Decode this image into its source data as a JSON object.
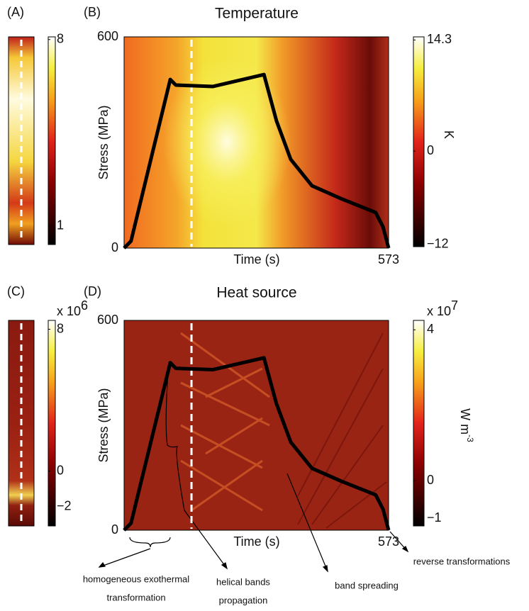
{
  "chart_data": [
    {
      "type": "line",
      "title": "Temperature",
      "panel_labels": [
        "(A)",
        "(B)"
      ],
      "ylabel": "Stress (MPa)",
      "xlabel": "Time (s)",
      "xlim": [
        0,
        573
      ],
      "ylim": [
        0,
        600
      ],
      "xticks": [
        573
      ],
      "yticks": [
        0,
        600
      ],
      "cursor_time": 146,
      "x": [
        0,
        15,
        100,
        112,
        192,
        303,
        330,
        361,
        407,
        469,
        545,
        561,
        573
      ],
      "series": [
        {
          "color": "#000000",
          "values": [
            0,
            20,
            479,
            463,
            459,
            493,
            362,
            252,
            177,
            141,
            101,
            60,
            0
          ]
        }
      ],
      "colorbar": {
        "lim": [
          -12.3,
          14.7
        ],
        "ticks": [
          14.3,
          0,
          {
            "value": -12,
            "label": "−12"
          }
        ],
        "label": "K"
      },
      "side_colorbar": {
        "lim": [
          0.3,
          8.1
        ],
        "ticks": [
          8,
          1
        ]
      }
    },
    {
      "type": "line",
      "title": "Heat source",
      "panel_labels": [
        "(C)",
        "(D)"
      ],
      "ylabel": "Stress (MPa)",
      "xlabel": "Time (s)",
      "xlim": [
        0,
        573
      ],
      "ylim": [
        0,
        600
      ],
      "xticks": [
        573
      ],
      "yticks": [
        0,
        600
      ],
      "cursor_time": 146,
      "x": [
        0,
        15,
        100,
        112,
        192,
        303,
        330,
        361,
        407,
        469,
        545,
        561,
        573
      ],
      "series": [
        {
          "color": "#000000",
          "values": [
            0,
            20,
            479,
            463,
            459,
            493,
            362,
            252,
            177,
            141,
            101,
            60,
            0
          ]
        }
      ],
      "colorbar": {
        "lim": [
          -1.2,
          4.25
        ],
        "ticks": [
          4,
          0,
          {
            "value": -1,
            "label": "−1"
          }
        ],
        "label": "W m",
        "label_exponent": "-3",
        "multiplier": "x 10",
        "exponent": "7"
      },
      "side_colorbar": {
        "lim": [
          -3.1,
          8.5
        ],
        "ticks": [
          8,
          0,
          {
            "value": -2,
            "label": "−2"
          }
        ],
        "multiplier": "x 10",
        "exponent": "6"
      },
      "annotations": [
        {
          "lines": [
            "homogeneous exothermal",
            "transformation"
          ]
        },
        {
          "lines": [
            "helical bands",
            "propagation"
          ]
        },
        {
          "lines": [
            "band spreading"
          ]
        },
        {
          "lines": [
            "reverse transformations"
          ]
        }
      ]
    }
  ]
}
